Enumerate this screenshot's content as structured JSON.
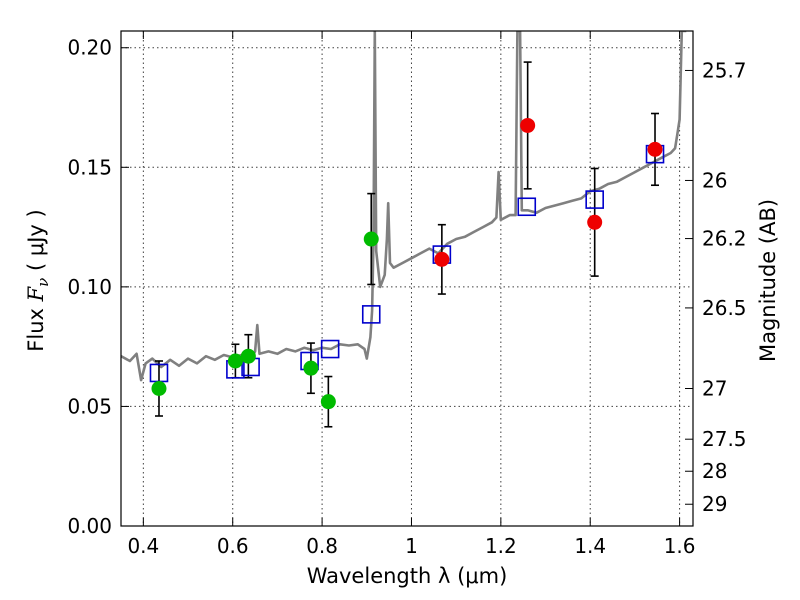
{
  "chart_data": {
    "type": "scatter",
    "xlabel": "Wavelength  λ (μm)",
    "ylabel": "Flux  F_ν  ( μJy )",
    "ylabel_parts": {
      "prefix": "Flux  ",
      "symbol": "F",
      "subscript": "ν",
      "suffix": "  ( μJy )"
    },
    "y2label": "Magnitude (AB)",
    "xlim": [
      0.35,
      1.63
    ],
    "ylim": [
      0.0,
      0.207
    ],
    "grid": true,
    "x_ticks": [
      "0.4",
      "0.6",
      "0.8",
      "1",
      "1.2",
      "1.4",
      "1.6"
    ],
    "x_tick_values": [
      0.4,
      0.6,
      0.8,
      1.0,
      1.2,
      1.4,
      1.6
    ],
    "y_ticks": [
      "0.00",
      "0.05",
      "0.10",
      "0.15",
      "0.20"
    ],
    "y_tick_values": [
      0.0,
      0.05,
      0.1,
      0.15,
      0.2
    ],
    "magnitude_ticks": [
      {
        "label": "25.7",
        "flux": 0.1905
      },
      {
        "label": "26",
        "flux": 0.1445
      },
      {
        "label": "26.2",
        "flux": 0.1202
      },
      {
        "label": "26.5",
        "flux": 0.0912
      },
      {
        "label": "27",
        "flux": 0.0575
      },
      {
        "label": "27.5",
        "flux": 0.0363
      },
      {
        "label": "28",
        "flux": 0.0229
      },
      {
        "label": "29",
        "flux": 0.0091
      }
    ],
    "series": [
      {
        "marker": "circle",
        "color": "#00bb00",
        "points": [
          {
            "x": 0.435,
            "y": 0.0575,
            "err": 0.0115
          },
          {
            "x": 0.606,
            "y": 0.069,
            "err": 0.007
          },
          {
            "x": 0.635,
            "y": 0.071,
            "err": 0.009
          },
          {
            "x": 0.775,
            "y": 0.066,
            "err": 0.0105
          },
          {
            "x": 0.814,
            "y": 0.052,
            "err": 0.0105
          },
          {
            "x": 0.91,
            "y": 0.12,
            "err": 0.019
          }
        ]
      },
      {
        "marker": "circle",
        "color": "#ee0000",
        "points": [
          {
            "x": 1.068,
            "y": 0.1115,
            "err": 0.0145
          },
          {
            "x": 1.26,
            "y": 0.1675,
            "err": 0.0265
          },
          {
            "x": 1.41,
            "y": 0.127,
            "err": 0.0225
          },
          {
            "x": 1.545,
            "y": 0.1575,
            "err": 0.015
          }
        ]
      },
      {
        "marker": "open-square",
        "color": "#0000cc",
        "points": [
          {
            "x": 0.435,
            "y": 0.064
          },
          {
            "x": 0.606,
            "y": 0.0655
          },
          {
            "x": 0.64,
            "y": 0.0665
          },
          {
            "x": 0.772,
            "y": 0.069
          },
          {
            "x": 0.818,
            "y": 0.074
          },
          {
            "x": 0.91,
            "y": 0.0885
          },
          {
            "x": 1.068,
            "y": 0.1135
          },
          {
            "x": 1.258,
            "y": 0.1335
          },
          {
            "x": 1.41,
            "y": 0.1365
          },
          {
            "x": 1.545,
            "y": 0.1555
          }
        ]
      },
      {
        "marker": "line",
        "color": "#808080",
        "points": [
          [
            0.35,
            0.071
          ],
          [
            0.37,
            0.069
          ],
          [
            0.385,
            0.072
          ],
          [
            0.395,
            0.061
          ],
          [
            0.405,
            0.068
          ],
          [
            0.42,
            0.07
          ],
          [
            0.44,
            0.0665
          ],
          [
            0.46,
            0.0695
          ],
          [
            0.48,
            0.067
          ],
          [
            0.5,
            0.07
          ],
          [
            0.52,
            0.068
          ],
          [
            0.54,
            0.071
          ],
          [
            0.56,
            0.0695
          ],
          [
            0.58,
            0.0715
          ],
          [
            0.6,
            0.0705
          ],
          [
            0.62,
            0.0715
          ],
          [
            0.64,
            0.07
          ],
          [
            0.65,
            0.073
          ],
          [
            0.655,
            0.084
          ],
          [
            0.66,
            0.072
          ],
          [
            0.68,
            0.073
          ],
          [
            0.7,
            0.072
          ],
          [
            0.72,
            0.074
          ],
          [
            0.74,
            0.073
          ],
          [
            0.76,
            0.0745
          ],
          [
            0.78,
            0.0735
          ],
          [
            0.8,
            0.0745
          ],
          [
            0.82,
            0.074
          ],
          [
            0.84,
            0.076
          ],
          [
            0.86,
            0.0755
          ],
          [
            0.88,
            0.076
          ],
          [
            0.895,
            0.074
          ],
          [
            0.9,
            0.07
          ],
          [
            0.908,
            0.079
          ],
          [
            0.912,
            0.09
          ],
          [
            0.915,
            0.12
          ],
          [
            0.918,
            0.207
          ],
          [
            0.921,
            0.115
          ],
          [
            0.93,
            0.1
          ],
          [
            0.94,
            0.105
          ],
          [
            0.945,
            0.12
          ],
          [
            0.948,
            0.135
          ],
          [
            0.952,
            0.11
          ],
          [
            0.96,
            0.108
          ],
          [
            0.98,
            0.11
          ],
          [
            1.0,
            0.112
          ],
          [
            1.02,
            0.114
          ],
          [
            1.04,
            0.116
          ],
          [
            1.06,
            0.114
          ],
          [
            1.08,
            0.118
          ],
          [
            1.1,
            0.12
          ],
          [
            1.12,
            0.121
          ],
          [
            1.14,
            0.123
          ],
          [
            1.16,
            0.125
          ],
          [
            1.18,
            0.127
          ],
          [
            1.19,
            0.129
          ],
          [
            1.195,
            0.148
          ],
          [
            1.2,
            0.128
          ],
          [
            1.22,
            0.13
          ],
          [
            1.233,
            0.13
          ],
          [
            1.237,
            0.207
          ],
          [
            1.243,
            0.207
          ],
          [
            1.247,
            0.132
          ],
          [
            1.26,
            0.132
          ],
          [
            1.28,
            0.131
          ],
          [
            1.3,
            0.133
          ],
          [
            1.32,
            0.134
          ],
          [
            1.34,
            0.135
          ],
          [
            1.36,
            0.136
          ],
          [
            1.38,
            0.137
          ],
          [
            1.4,
            0.14
          ],
          [
            1.42,
            0.141
          ],
          [
            1.44,
            0.143
          ],
          [
            1.46,
            0.144
          ],
          [
            1.48,
            0.146
          ],
          [
            1.5,
            0.148
          ],
          [
            1.52,
            0.15
          ],
          [
            1.54,
            0.152
          ],
          [
            1.56,
            0.154
          ],
          [
            1.58,
            0.156
          ],
          [
            1.59,
            0.158
          ],
          [
            1.595,
            0.164
          ],
          [
            1.6,
            0.17
          ],
          [
            1.605,
            0.207
          ],
          [
            1.615,
            0.207
          ]
        ]
      }
    ]
  }
}
